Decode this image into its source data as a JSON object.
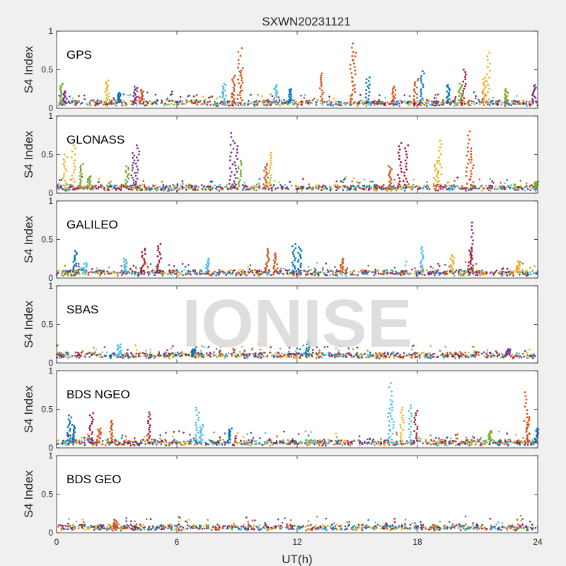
{
  "title": "SXWN20231121",
  "watermark": "IONISE",
  "xlabel": "UT(h)",
  "ylabel": "S4 Index",
  "xticks": [
    "0",
    "6",
    "12",
    "18",
    "24"
  ],
  "yticks": [
    "0",
    "0.5",
    "1"
  ],
  "colors": [
    "#0072BD",
    "#D95319",
    "#EDB120",
    "#7E2F8E",
    "#77AC30",
    "#4DBEEE",
    "#A2142F"
  ],
  "chart_data": [
    {
      "type": "scatter",
      "label": "GPS",
      "xlim": [
        0,
        24
      ],
      "ylim": [
        0,
        1
      ],
      "baseline": 0.07,
      "spikes": [
        {
          "x": 0.2,
          "y": 0.32,
          "c": 4
        },
        {
          "x": 0.4,
          "y": 0.22,
          "c": 3
        },
        {
          "x": 2.5,
          "y": 0.36,
          "c": 2
        },
        {
          "x": 3.1,
          "y": 0.2,
          "c": 0
        },
        {
          "x": 3.9,
          "y": 0.28,
          "c": 3
        },
        {
          "x": 4.2,
          "y": 0.24,
          "c": 1
        },
        {
          "x": 8.3,
          "y": 0.32,
          "c": 5
        },
        {
          "x": 8.8,
          "y": 0.42,
          "c": 1
        },
        {
          "x": 9.1,
          "y": 0.78,
          "c": 1
        },
        {
          "x": 9.2,
          "y": 0.52,
          "c": 1
        },
        {
          "x": 10.9,
          "y": 0.3,
          "c": 5
        },
        {
          "x": 11.6,
          "y": 0.25,
          "c": 0
        },
        {
          "x": 13.2,
          "y": 0.45,
          "c": 1
        },
        {
          "x": 14.7,
          "y": 0.84,
          "c": 1
        },
        {
          "x": 14.8,
          "y": 0.72,
          "c": 1
        },
        {
          "x": 15.5,
          "y": 0.4,
          "c": 0
        },
        {
          "x": 16.8,
          "y": 0.28,
          "c": 1
        },
        {
          "x": 17.9,
          "y": 0.38,
          "c": 1
        },
        {
          "x": 18.2,
          "y": 0.48,
          "c": 0
        },
        {
          "x": 19.5,
          "y": 0.3,
          "c": 0
        },
        {
          "x": 20.3,
          "y": 0.5,
          "c": 6
        },
        {
          "x": 20.1,
          "y": 0.32,
          "c": 4
        },
        {
          "x": 21.5,
          "y": 0.72,
          "c": 2
        },
        {
          "x": 21.3,
          "y": 0.4,
          "c": 2
        },
        {
          "x": 22.4,
          "y": 0.25,
          "c": 4
        },
        {
          "x": 23.8,
          "y": 0.3,
          "c": 3
        }
      ]
    },
    {
      "type": "scatter",
      "label": "GLONASS",
      "xlim": [
        0,
        24
      ],
      "ylim": [
        0,
        1
      ],
      "baseline": 0.07,
      "spikes": [
        {
          "x": 0.4,
          "y": 0.5,
          "c": 2
        },
        {
          "x": 0.8,
          "y": 0.62,
          "c": 2
        },
        {
          "x": 1.2,
          "y": 0.38,
          "c": 4
        },
        {
          "x": 1.6,
          "y": 0.22,
          "c": 4
        },
        {
          "x": 3.5,
          "y": 0.35,
          "c": 4
        },
        {
          "x": 3.8,
          "y": 0.52,
          "c": 3
        },
        {
          "x": 4.0,
          "y": 0.62,
          "c": 3
        },
        {
          "x": 8.7,
          "y": 0.78,
          "c": 3
        },
        {
          "x": 8.9,
          "y": 0.65,
          "c": 3
        },
        {
          "x": 9.1,
          "y": 0.42,
          "c": 4
        },
        {
          "x": 10.6,
          "y": 0.52,
          "c": 2
        },
        {
          "x": 10.4,
          "y": 0.38,
          "c": 1
        },
        {
          "x": 17.1,
          "y": 0.65,
          "c": 6
        },
        {
          "x": 17.4,
          "y": 0.62,
          "c": 6
        },
        {
          "x": 16.6,
          "y": 0.35,
          "c": 1
        },
        {
          "x": 19.1,
          "y": 0.68,
          "c": 2
        },
        {
          "x": 18.9,
          "y": 0.42,
          "c": 2
        },
        {
          "x": 20.5,
          "y": 0.8,
          "c": 1
        },
        {
          "x": 20.7,
          "y": 0.58,
          "c": 1
        },
        {
          "x": 23.9,
          "y": 0.15,
          "c": 4
        }
      ]
    },
    {
      "type": "scatter",
      "label": "GALILEO",
      "xlim": [
        0,
        24
      ],
      "ylim": [
        0,
        1
      ],
      "baseline": 0.07,
      "spikes": [
        {
          "x": 0.9,
          "y": 0.35,
          "c": 0
        },
        {
          "x": 1.4,
          "y": 0.2,
          "c": 5
        },
        {
          "x": 3.4,
          "y": 0.25,
          "c": 5
        },
        {
          "x": 4.3,
          "y": 0.38,
          "c": 6
        },
        {
          "x": 5.1,
          "y": 0.44,
          "c": 6
        },
        {
          "x": 7.5,
          "y": 0.25,
          "c": 5
        },
        {
          "x": 10.5,
          "y": 0.38,
          "c": 1
        },
        {
          "x": 10.9,
          "y": 0.32,
          "c": 1
        },
        {
          "x": 11.8,
          "y": 0.44,
          "c": 0
        },
        {
          "x": 12.1,
          "y": 0.4,
          "c": 0
        },
        {
          "x": 14.2,
          "y": 0.25,
          "c": 1
        },
        {
          "x": 18.2,
          "y": 0.4,
          "c": 5
        },
        {
          "x": 19.7,
          "y": 0.3,
          "c": 2
        },
        {
          "x": 20.7,
          "y": 0.72,
          "c": 3
        },
        {
          "x": 20.6,
          "y": 0.38,
          "c": 6
        },
        {
          "x": 23.0,
          "y": 0.22,
          "c": 2
        }
      ]
    },
    {
      "type": "scatter",
      "label": "SBAS",
      "xlim": [
        0,
        24
      ],
      "ylim": [
        0,
        1
      ],
      "baseline": 0.1,
      "spikes": [
        {
          "x": 3.1,
          "y": 0.24,
          "c": 5
        },
        {
          "x": 12.5,
          "y": 0.28,
          "c": 0
        },
        {
          "x": 6.8,
          "y": 0.18,
          "c": 0
        },
        {
          "x": 22.5,
          "y": 0.18,
          "c": 3
        }
      ]
    },
    {
      "type": "scatter",
      "label": "BDS NGEO",
      "xlim": [
        0,
        24
      ],
      "ylim": [
        0,
        1
      ],
      "baseline": 0.07,
      "spikes": [
        {
          "x": 0.6,
          "y": 0.42,
          "c": 0
        },
        {
          "x": 0.8,
          "y": 0.3,
          "c": 0
        },
        {
          "x": 1.7,
          "y": 0.45,
          "c": 6
        },
        {
          "x": 2.1,
          "y": 0.25,
          "c": 1
        },
        {
          "x": 2.7,
          "y": 0.35,
          "c": 1
        },
        {
          "x": 4.6,
          "y": 0.46,
          "c": 6
        },
        {
          "x": 7.0,
          "y": 0.52,
          "c": 5
        },
        {
          "x": 7.2,
          "y": 0.3,
          "c": 5
        },
        {
          "x": 8.6,
          "y": 0.25,
          "c": 0
        },
        {
          "x": 16.6,
          "y": 0.84,
          "c": 5
        },
        {
          "x": 16.7,
          "y": 0.6,
          "c": 5
        },
        {
          "x": 17.2,
          "y": 0.52,
          "c": 2
        },
        {
          "x": 17.6,
          "y": 0.55,
          "c": 5
        },
        {
          "x": 17.9,
          "y": 0.48,
          "c": 6
        },
        {
          "x": 21.6,
          "y": 0.22,
          "c": 4
        },
        {
          "x": 23.4,
          "y": 0.72,
          "c": 1
        },
        {
          "x": 23.5,
          "y": 0.4,
          "c": 1
        },
        {
          "x": 23.9,
          "y": 0.25,
          "c": 0
        }
      ]
    },
    {
      "type": "scatter",
      "label": "BDS GEO",
      "xlim": [
        0,
        24
      ],
      "ylim": [
        0,
        1
      ],
      "baseline": 0.07,
      "spikes": [
        {
          "x": 2.9,
          "y": 0.17,
          "c": 1
        }
      ]
    }
  ]
}
